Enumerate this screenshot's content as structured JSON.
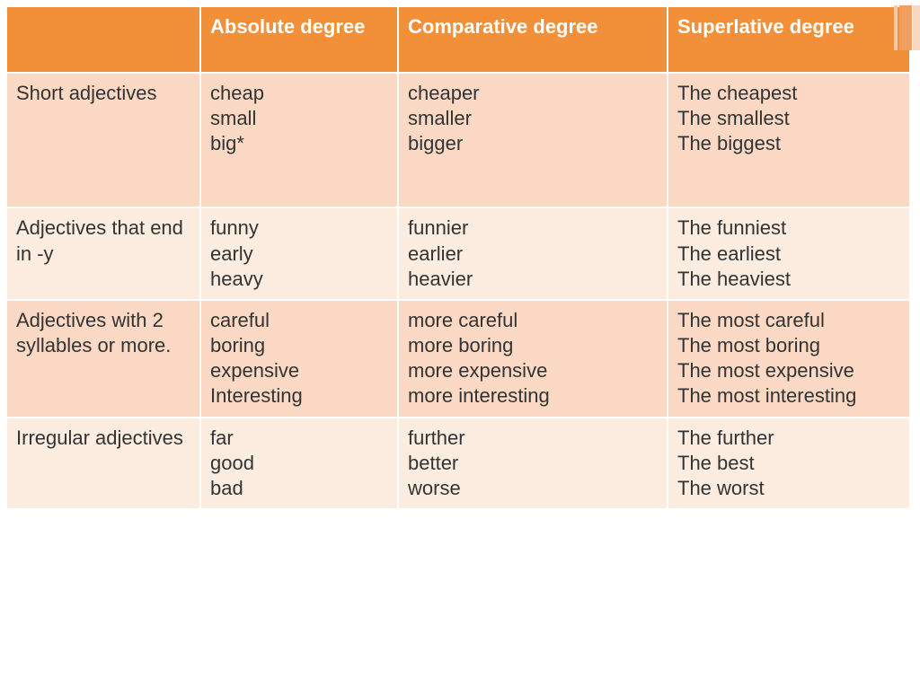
{
  "table": {
    "headers": {
      "cat": "",
      "absolute": " Absolute degree",
      "comparative": "Comparative degree",
      "superlative": "Superlative degree"
    },
    "rows": [
      {
        "shade": "even",
        "tall": true,
        "category": "Short adjectives",
        "absolute": "cheap\nsmall\nbig*",
        "comparative": "cheaper\nsmaller\nbigger",
        "superlative": "The cheapest\nThe smallest\nThe biggest"
      },
      {
        "shade": "odd",
        "category": "Adjectives that end in -y",
        "absolute": "funny\nearly\nheavy",
        "comparative": "funnier\nearlier\nheavier",
        "superlative": "The funniest\nThe earliest\nThe heaviest"
      },
      {
        "shade": "even",
        "category": "Adjectives with 2 syllables or more.",
        "absolute": "careful\nboring\nexpensive\nInteresting",
        "comparative": "more careful\nmore boring\nmore expensive\nmore interesting",
        "superlative": "The most careful\nThe  most boring\nThe most expensive\nThe most interesting"
      },
      {
        "shade": "odd",
        "category": "Irregular adjectives",
        "absolute": "far\ngood\nbad",
        "comparative": "further\nbetter\nworse",
        "superlative": "The further\nThe best\nThe worst"
      }
    ],
    "colors": {
      "header_bg": "#f29039",
      "header_text": "#ffffff",
      "row_even_bg": "#fbd9c4",
      "row_odd_bg": "#fdece0",
      "border": "#ffffff",
      "text": "#333333"
    },
    "font_size_pt": 16
  }
}
